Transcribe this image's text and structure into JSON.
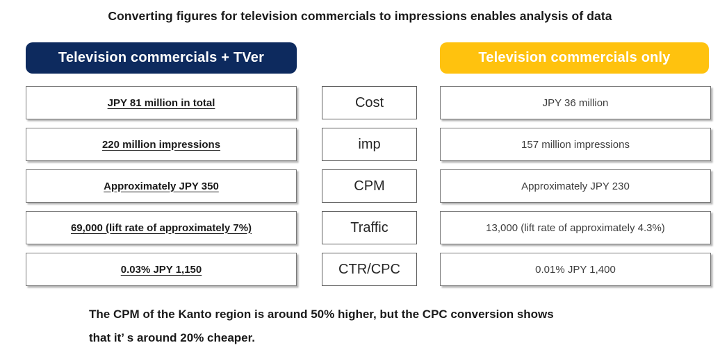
{
  "title": "Converting figures for television commercials to impressions enables analysis of data",
  "columns": {
    "left_header": "Television commercials + TVer",
    "right_header": "Television commercials only"
  },
  "colors": {
    "left_header_bg": "#0d2a5e",
    "right_header_bg": "#ffc20e",
    "header_text": "#ffffff",
    "box_border": "#7a7a7a"
  },
  "rows": [
    {
      "metric": "Cost",
      "left": "JPY 81 million in total",
      "right": "JPY 36 million"
    },
    {
      "metric": "imp",
      "left": "220 million impressions",
      "right": "157 million impressions"
    },
    {
      "metric": "CPM",
      "left": "Approximately JPY 350",
      "right": "Approximately JPY 230"
    },
    {
      "metric": "Traffic",
      "left": "69,000 (lift rate of approximately 7%)",
      "right": "13,000 (lift rate of approximately 4.3%)"
    },
    {
      "metric": "CTR/CPC",
      "left": "0.03% JPY 1,150",
      "right": "0.01% JPY 1,400"
    }
  ],
  "footnote": {
    "line1": "The CPM of the Kanto region is around 50% higher, but the CPC conversion shows",
    "line2": "that it’ s around 20% cheaper."
  }
}
